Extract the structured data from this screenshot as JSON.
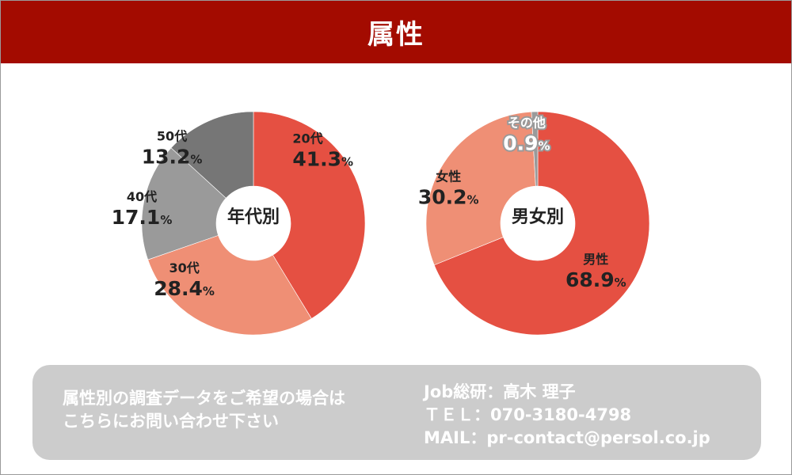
{
  "header": {
    "title": "属性"
  },
  "chart_data": [
    {
      "type": "pie",
      "center_label": "年代別",
      "categories": [
        "20代",
        "30代",
        "40代",
        "50代"
      ],
      "values": [
        41.3,
        28.4,
        17.1,
        13.2
      ],
      "value_labels": [
        "41.3",
        "28.4",
        "17.1",
        "13.2"
      ],
      "unit": "%",
      "colors": [
        "#e55042",
        "#ef8f75",
        "#9a9a9a",
        "#767676"
      ]
    },
    {
      "type": "pie",
      "center_label": "男女別",
      "categories": [
        "男性",
        "女性",
        "その他"
      ],
      "values": [
        68.9,
        30.2,
        0.9
      ],
      "value_labels": [
        "68.9",
        "30.2",
        "0.9"
      ],
      "unit": "%",
      "colors": [
        "#e55042",
        "#ef8f75",
        "#9a9a9a"
      ]
    }
  ],
  "footer": {
    "request_line1": "属性別の調査データをご希望の場合は",
    "request_line2": "こちらにお問い合わせ下さい",
    "contact_line1": "Job総研：高木 理子",
    "contact_line2": "ＴＥＬ：070-3180-4798",
    "contact_line3": "MAIL：pr-contact@persol.co.jp",
    "bg_color": "#cccccc"
  }
}
